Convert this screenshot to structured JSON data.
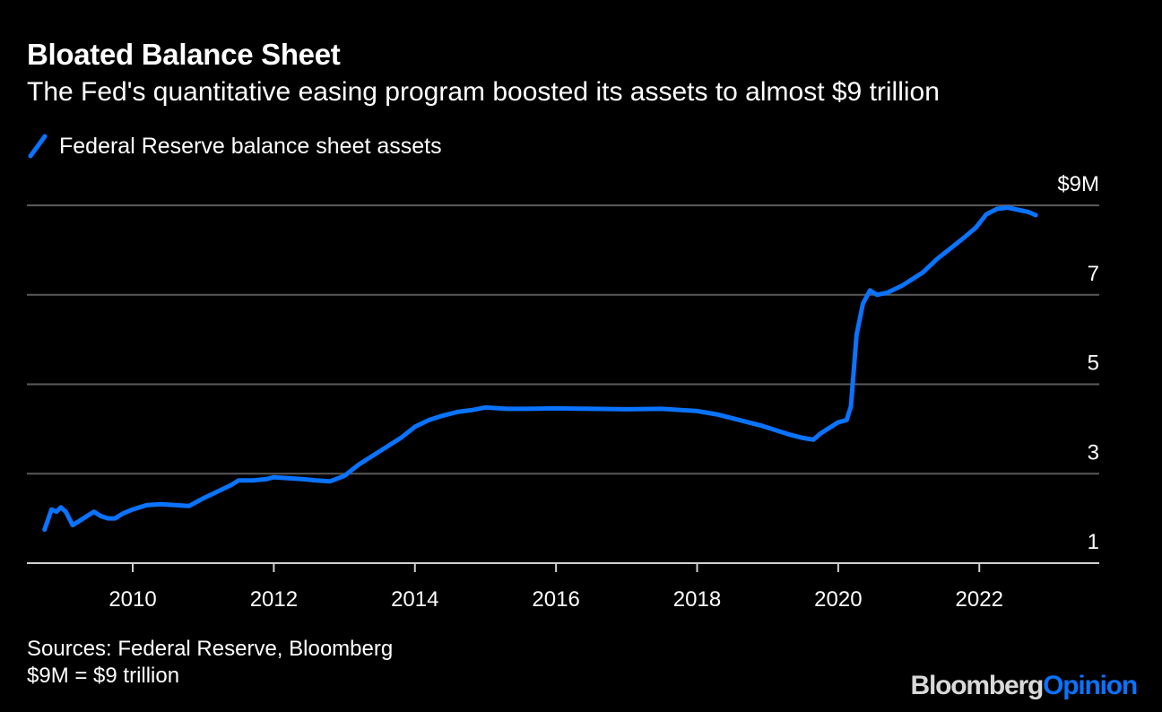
{
  "header": {
    "title": "Bloated Balance Sheet",
    "subtitle": "The Fed's quantitative easing program boosted its assets to almost $9 trillion"
  },
  "legend": {
    "label": "Federal Reserve balance sheet assets",
    "color": "#0a73ff"
  },
  "footer": {
    "source": "Sources: Federal Reserve, Bloomberg",
    "note": "$9M = $9 trillion",
    "brand_a": "Bloomberg",
    "brand_b": "Opinion"
  },
  "colors": {
    "background": "#000000",
    "line": "#0a73ff",
    "grid": "#5a5a5a",
    "text": "#ffffff"
  },
  "chart_data": {
    "type": "line",
    "title": "Bloated Balance Sheet",
    "subtitle": "The Fed's quantitative easing program boosted its assets to almost $9 trillion",
    "xlabel": "",
    "ylabel": "",
    "xlim": [
      2008.5,
      2023.7
    ],
    "ylim": [
      1,
      9
    ],
    "grid": true,
    "legend_position": "top-left",
    "y_ticks": [
      {
        "value": 9,
        "label": "$9M"
      },
      {
        "value": 7,
        "label": "7"
      },
      {
        "value": 5,
        "label": "5"
      },
      {
        "value": 3,
        "label": "3"
      },
      {
        "value": 1,
        "label": "1"
      }
    ],
    "x_ticks": [
      {
        "value": 2010,
        "label": "2010"
      },
      {
        "value": 2012,
        "label": "2012"
      },
      {
        "value": 2014,
        "label": "2014"
      },
      {
        "value": 2016,
        "label": "2016"
      },
      {
        "value": 2018,
        "label": "2018"
      },
      {
        "value": 2020,
        "label": "2020"
      },
      {
        "value": 2022,
        "label": "2022"
      }
    ],
    "series": [
      {
        "name": "Federal Reserve balance sheet assets",
        "points": [
          [
            2008.75,
            1.75
          ],
          [
            2008.85,
            2.2
          ],
          [
            2008.92,
            2.15
          ],
          [
            2008.98,
            2.25
          ],
          [
            2009.05,
            2.15
          ],
          [
            2009.15,
            1.85
          ],
          [
            2009.25,
            1.95
          ],
          [
            2009.35,
            2.05
          ],
          [
            2009.45,
            2.15
          ],
          [
            2009.55,
            2.05
          ],
          [
            2009.65,
            2.0
          ],
          [
            2009.75,
            2.0
          ],
          [
            2009.85,
            2.1
          ],
          [
            2010.0,
            2.2
          ],
          [
            2010.1,
            2.25
          ],
          [
            2010.2,
            2.3
          ],
          [
            2010.4,
            2.32
          ],
          [
            2010.6,
            2.3
          ],
          [
            2010.8,
            2.28
          ],
          [
            2011.0,
            2.45
          ],
          [
            2011.2,
            2.6
          ],
          [
            2011.4,
            2.75
          ],
          [
            2011.5,
            2.85
          ],
          [
            2011.7,
            2.85
          ],
          [
            2011.9,
            2.88
          ],
          [
            2012.0,
            2.92
          ],
          [
            2012.2,
            2.9
          ],
          [
            2012.4,
            2.88
          ],
          [
            2012.6,
            2.85
          ],
          [
            2012.8,
            2.83
          ],
          [
            2013.0,
            2.95
          ],
          [
            2013.2,
            3.2
          ],
          [
            2013.5,
            3.5
          ],
          [
            2013.8,
            3.8
          ],
          [
            2014.0,
            4.05
          ],
          [
            2014.2,
            4.2
          ],
          [
            2014.4,
            4.3
          ],
          [
            2014.6,
            4.38
          ],
          [
            2014.8,
            4.42
          ],
          [
            2015.0,
            4.48
          ],
          [
            2015.3,
            4.45
          ],
          [
            2015.6,
            4.45
          ],
          [
            2016.0,
            4.46
          ],
          [
            2016.5,
            4.45
          ],
          [
            2017.0,
            4.44
          ],
          [
            2017.5,
            4.45
          ],
          [
            2018.0,
            4.4
          ],
          [
            2018.3,
            4.32
          ],
          [
            2018.6,
            4.2
          ],
          [
            2018.9,
            4.08
          ],
          [
            2019.1,
            3.98
          ],
          [
            2019.3,
            3.88
          ],
          [
            2019.5,
            3.8
          ],
          [
            2019.65,
            3.76
          ],
          [
            2019.75,
            3.9
          ],
          [
            2019.85,
            4.0
          ],
          [
            2020.0,
            4.15
          ],
          [
            2020.12,
            4.2
          ],
          [
            2020.18,
            4.5
          ],
          [
            2020.22,
            5.3
          ],
          [
            2020.26,
            6.1
          ],
          [
            2020.35,
            6.8
          ],
          [
            2020.45,
            7.1
          ],
          [
            2020.55,
            7.0
          ],
          [
            2020.7,
            7.05
          ],
          [
            2020.9,
            7.2
          ],
          [
            2021.0,
            7.3
          ],
          [
            2021.2,
            7.5
          ],
          [
            2021.4,
            7.8
          ],
          [
            2021.6,
            8.05
          ],
          [
            2021.8,
            8.3
          ],
          [
            2021.95,
            8.5
          ],
          [
            2022.1,
            8.8
          ],
          [
            2022.25,
            8.92
          ],
          [
            2022.4,
            8.95
          ],
          [
            2022.55,
            8.9
          ],
          [
            2022.7,
            8.85
          ],
          [
            2022.8,
            8.78
          ]
        ]
      }
    ]
  }
}
